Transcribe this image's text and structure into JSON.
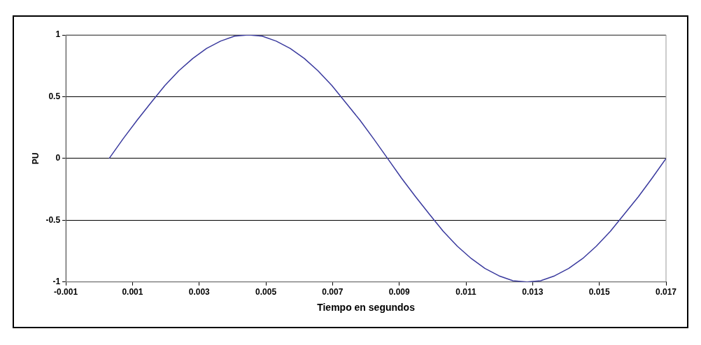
{
  "chart_data": {
    "type": "line",
    "xlabel": "Tiempo en segundos",
    "ylabel": "PU",
    "x": [
      0.0003,
      0.00072,
      0.00114,
      0.00155,
      0.00197,
      0.00239,
      0.00281,
      0.00322,
      0.00364,
      0.00406,
      0.00448,
      0.00489,
      0.00531,
      0.00573,
      0.00615,
      0.00656,
      0.00698,
      0.0074,
      0.00782,
      0.00823,
      0.00865,
      0.00907,
      0.00949,
      0.0099,
      0.01032,
      0.01074,
      0.01116,
      0.01157,
      0.01199,
      0.01241,
      0.01283,
      0.01324,
      0.01366,
      0.01408,
      0.0145,
      0.01491,
      0.01533,
      0.01575,
      0.01617,
      0.01658,
      0.017
    ],
    "series": [
      {
        "color": "#3a3a9e",
        "values": [
          0,
          0.16,
          0.31,
          0.45,
          0.59,
          0.71,
          0.81,
          0.89,
          0.95,
          0.99,
          1,
          0.99,
          0.95,
          0.89,
          0.81,
          0.71,
          0.59,
          0.45,
          0.31,
          0.16,
          0,
          -0.16,
          -0.31,
          -0.45,
          -0.59,
          -0.71,
          -0.81,
          -0.89,
          -0.95,
          -0.99,
          -1,
          -0.99,
          -0.95,
          -0.89,
          -0.81,
          -0.71,
          -0.59,
          -0.45,
          -0.31,
          -0.16,
          0
        ]
      }
    ],
    "xlim": [
      -0.001,
      0.017
    ],
    "xticks": [
      -0.001,
      0.001,
      0.003,
      0.005,
      0.007,
      0.009,
      0.011,
      0.013,
      0.015,
      0.017
    ],
    "ylim": [
      -1,
      1
    ],
    "yticks": [
      -1,
      -0.5,
      0,
      0.5,
      1
    ],
    "grid": "y",
    "legend": false,
    "marker": "none",
    "line_style": "solid"
  }
}
